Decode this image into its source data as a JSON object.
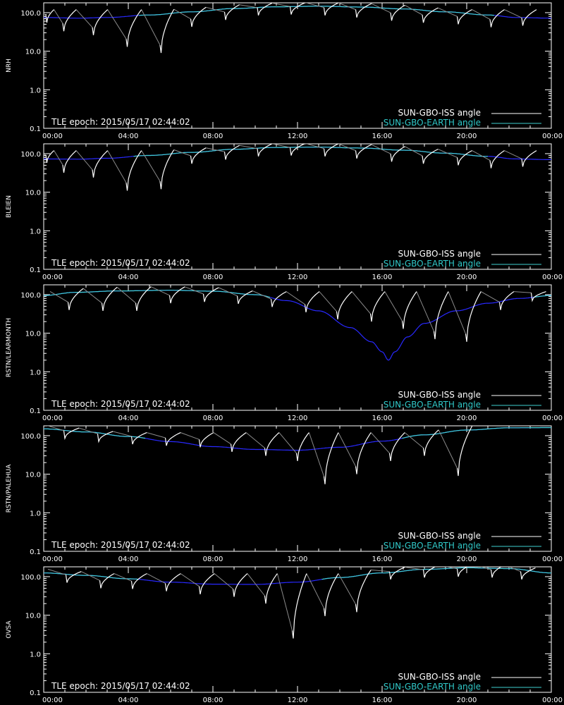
{
  "colors": {
    "background": "#000000",
    "axes": "#ffffff",
    "iss_line": "#ffffff",
    "earth_line_visible": "#40d0d0",
    "earth_line_below": "#2828ff",
    "legend_iss_text": "#ffffff",
    "legend_earth_text": "#30c8c8"
  },
  "shared": {
    "x_tick_labels": [
      "00:00",
      "04:00",
      "08:00",
      "12:00",
      "16:00",
      "20:00",
      "00:00"
    ],
    "y_tick_labels": [
      "0.1",
      "1.0",
      "10.0",
      "100.0"
    ],
    "y_scale": "log",
    "ylim": [
      0.1,
      180
    ],
    "xlim_hours": [
      0,
      24
    ],
    "legend_iss": "SUN-GBO-ISS angle",
    "legend_earth": "SUN-GBO-EARTH angle",
    "epoch_text": "TLE epoch: 2015/05/17 02:44:02"
  },
  "chart_data": [
    {
      "type": "line",
      "ylabel": "NRH",
      "x_unit": "hours",
      "series": [
        {
          "name": "SUN-GBO-EARTH angle",
          "x": [
            0,
            1.65,
            3,
            5,
            7,
            9,
            11,
            13,
            15,
            17,
            19,
            21,
            22.35,
            24
          ],
          "y": [
            75,
            72,
            75,
            87,
            105,
            128,
            142,
            147,
            140,
            125,
            105,
            87,
            75,
            72
          ]
        },
        {
          "name": "SUN-GBO-ISS angle",
          "x": [
            0.15,
            0.95,
            2.35,
            3.95,
            5.55,
            7.0,
            8.6,
            10.15,
            11.7,
            13.3,
            14.8,
            16.45,
            17.95,
            19.6,
            21.15,
            22.65
          ],
          "y": [
            55,
            33,
            26,
            13,
            9,
            43,
            65,
            85,
            90,
            85,
            75,
            62,
            55,
            50,
            42,
            46
          ]
        }
      ]
    },
    {
      "type": "line",
      "ylabel": "BLEIEN",
      "x_unit": "hours",
      "series": [
        {
          "name": "SUN-GBO-EARTH angle",
          "x": [
            0,
            1.7,
            3,
            5,
            7,
            9,
            11,
            13,
            15,
            17,
            19,
            21,
            22.3,
            24
          ],
          "y": [
            73,
            72,
            76,
            90,
            108,
            130,
            145,
            148,
            140,
            123,
            103,
            85,
            73,
            70
          ]
        },
        {
          "name": "SUN-GBO-ISS angle",
          "x": [
            0.15,
            0.95,
            2.35,
            3.95,
            5.55,
            7.0,
            8.6,
            10.15,
            11.7,
            13.3,
            14.8,
            16.45,
            17.95,
            19.6,
            21.15,
            22.65
          ],
          "y": [
            58,
            32,
            24,
            11,
            12,
            55,
            70,
            85,
            90,
            85,
            75,
            62,
            55,
            50,
            42,
            46
          ]
        }
      ]
    },
    {
      "type": "line",
      "ylabel": "RSTN/LEARMONTH",
      "x_unit": "hours",
      "series": [
        {
          "name": "SUN-GBO-EARTH angle",
          "x": [
            0,
            1.5,
            3.5,
            6,
            8,
            10,
            11.5,
            13,
            14.5,
            15.5,
            16.0,
            16.3,
            16.6,
            17.2,
            18,
            19.5,
            21,
            22.5,
            24
          ],
          "y": [
            95,
            115,
            125,
            130,
            123,
            100,
            70,
            38,
            14,
            6,
            3.3,
            2.0,
            3.3,
            8,
            18,
            38,
            60,
            80,
            95
          ]
        },
        {
          "name": "SUN-GBO-ISS angle",
          "x": [
            1.2,
            2.8,
            4.4,
            6.0,
            7.6,
            9.2,
            10.8,
            12.4,
            13.9,
            15.5,
            17.0,
            18.5,
            20.0,
            21.6,
            23.1
          ],
          "y": [
            40,
            38,
            38,
            60,
            65,
            58,
            48,
            35,
            23,
            20,
            13,
            7,
            6,
            40,
            70
          ]
        }
      ]
    },
    {
      "type": "line",
      "ylabel": "RSTN/PALEHUA",
      "x_unit": "hours",
      "series": [
        {
          "name": "SUN-GBO-EARTH angle",
          "x": [
            0,
            2,
            4,
            6,
            8,
            10,
            12,
            14,
            16,
            18,
            20,
            22,
            24
          ],
          "y": [
            150,
            125,
            95,
            70,
            52,
            44,
            42,
            50,
            72,
            105,
            140,
            160,
            162
          ]
        },
        {
          "name": "SUN-GBO-ISS angle",
          "x": [
            1.0,
            2.6,
            4.2,
            5.8,
            7.4,
            8.9,
            10.5,
            12.0,
            13.3,
            14.8,
            16.4,
            18.0,
            19.6
          ],
          "y": [
            85,
            70,
            60,
            55,
            50,
            38,
            30,
            22,
            5.5,
            10,
            22,
            30,
            9
          ]
        }
      ]
    },
    {
      "type": "line",
      "ylabel": "OVSA",
      "x_unit": "hours",
      "series": [
        {
          "name": "SUN-GBO-EARTH angle",
          "x": [
            0,
            2,
            4,
            6,
            8,
            10,
            12,
            14,
            16,
            18,
            20,
            22,
            24
          ],
          "y": [
            125,
            108,
            88,
            72,
            64,
            63,
            72,
            95,
            125,
            155,
            170,
            162,
            125
          ]
        },
        {
          "name": "SUN-GBO-ISS angle",
          "x": [
            1.1,
            2.7,
            4.2,
            5.8,
            7.4,
            9.0,
            10.5,
            11.8,
            13.3,
            14.8,
            16.4,
            18.0,
            19.6,
            21.2,
            22.6
          ],
          "y": [
            70,
            50,
            48,
            42,
            35,
            30,
            20,
            2.5,
            9.5,
            12,
            85,
            95,
            100,
            95,
            85
          ]
        }
      ]
    }
  ]
}
